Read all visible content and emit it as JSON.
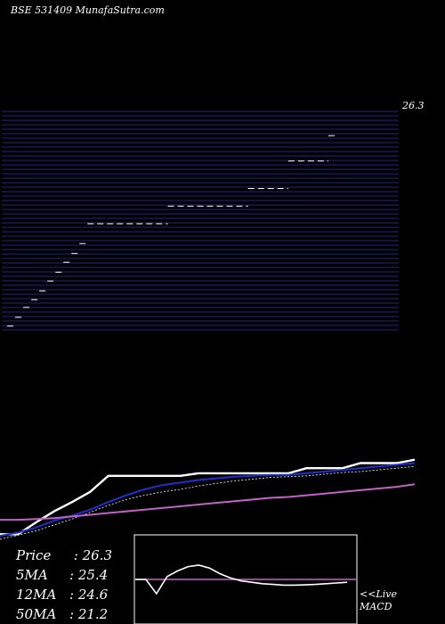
{
  "header": {
    "title": "BSE 531409 MunafaSutra.com"
  },
  "stats": [
    {
      "key": "Price",
      "value": "26.3"
    },
    {
      "key": "5MA",
      "value": "25.4"
    },
    {
      "key": "12MA",
      "value": "24.6"
    },
    {
      "key": "50MA",
      "value": "21.2"
    }
  ],
  "live": {
    "arrow": "<<Live",
    "macd": "MACD"
  },
  "colors": {
    "background": "#000000",
    "grid": "#1b1f66",
    "price": "#ffffff",
    "ma_short": "#1f2fd0",
    "ma_long": "#c262c8",
    "macd_signal": "#c262c8"
  },
  "chart_data": [
    {
      "type": "line",
      "panel": "price",
      "price_top_label": "26.3",
      "steps": [
        {
          "start": 0,
          "end": 1,
          "level": 7.5
        },
        {
          "start": 1,
          "end": 2,
          "level": 8.3
        },
        {
          "start": 2,
          "end": 3,
          "level": 9.2
        },
        {
          "start": 3,
          "end": 4,
          "level": 9.9
        },
        {
          "start": 4,
          "end": 5,
          "level": 10.7
        },
        {
          "start": 5,
          "end": 6,
          "level": 11.6
        },
        {
          "start": 6,
          "end": 7,
          "level": 12.4
        },
        {
          "start": 7,
          "end": 8,
          "level": 13.3
        },
        {
          "start": 8,
          "end": 9,
          "level": 14.1
        },
        {
          "start": 9,
          "end": 10,
          "level": 15.0
        },
        {
          "start": 10,
          "end": 20,
          "level": 16.8
        },
        {
          "start": 20,
          "end": 30,
          "level": 18.4
        },
        {
          "start": 30,
          "end": 35,
          "level": 20.0
        },
        {
          "start": 35,
          "end": 40,
          "level": 22.5
        },
        {
          "start": 40,
          "end": 41,
          "level": 24.8
        }
      ],
      "ylim": [
        7,
        27
      ]
    },
    {
      "type": "line",
      "panel": "moving-averages",
      "x": [
        0,
        2,
        4,
        6,
        8,
        10,
        12,
        14,
        16,
        18,
        20,
        22,
        24,
        26,
        28,
        30,
        32,
        34,
        36,
        38,
        40,
        42,
        44,
        46
      ],
      "series": [
        {
          "values": [
            7.6,
            7.6,
            9.0,
            10.3,
            11.4,
            12.6,
            14.5,
            14.5,
            14.5,
            14.5,
            14.5,
            14.8,
            14.8,
            14.8,
            14.8,
            14.8,
            14.8,
            15.4,
            15.4,
            15.4,
            16.0,
            16.0,
            16.0,
            16.4
          ]
        },
        {
          "values": [
            7.4,
            7.8,
            8.4,
            9.2,
            9.8,
            10.5,
            11.4,
            12.2,
            12.9,
            13.4,
            13.7,
            14.0,
            14.2,
            14.4,
            14.5,
            14.6,
            14.6,
            14.8,
            15.0,
            15.2,
            15.4,
            15.6,
            15.8,
            16.0
          ]
        },
        {
          "values": [
            7.0,
            7.5,
            8.0,
            8.7,
            9.4,
            10.2,
            11.0,
            11.7,
            12.2,
            12.6,
            12.9,
            13.3,
            13.6,
            13.9,
            14.1,
            14.3,
            14.4,
            14.5,
            14.7,
            14.9,
            15.0,
            15.2,
            15.4,
            15.6
          ]
        },
        {
          "values": [
            9.3,
            9.3,
            9.4,
            9.5,
            9.7,
            9.9,
            10.1,
            10.3,
            10.5,
            10.7,
            10.9,
            11.1,
            11.3,
            11.5,
            11.7,
            11.9,
            12.0,
            12.2,
            12.4,
            12.6,
            12.8,
            13.0,
            13.2,
            13.5
          ]
        }
      ],
      "ylim": [
        7,
        17
      ]
    },
    {
      "type": "line",
      "panel": "macd",
      "x": [
        0,
        1,
        2,
        3,
        4,
        5,
        6,
        7,
        8,
        9,
        10,
        11,
        12,
        13,
        14,
        15,
        16,
        17,
        18,
        19,
        20
      ],
      "series": [
        {
          "values": [
            0,
            0,
            -1,
            0.2,
            0.6,
            0.9,
            1.0,
            0.8,
            0.4,
            0.1,
            -0.1,
            -0.2,
            -0.3,
            -0.35,
            -0.4,
            -0.4,
            -0.38,
            -0.35,
            -0.3,
            -0.25,
            -0.2
          ]
        },
        {
          "values": [
            0,
            0,
            0,
            0,
            0,
            0,
            0,
            0,
            0,
            0,
            0,
            0,
            0,
            0,
            0,
            0,
            0,
            0,
            0,
            0,
            0
          ]
        }
      ],
      "ylim": [
        -3,
        3
      ]
    }
  ]
}
